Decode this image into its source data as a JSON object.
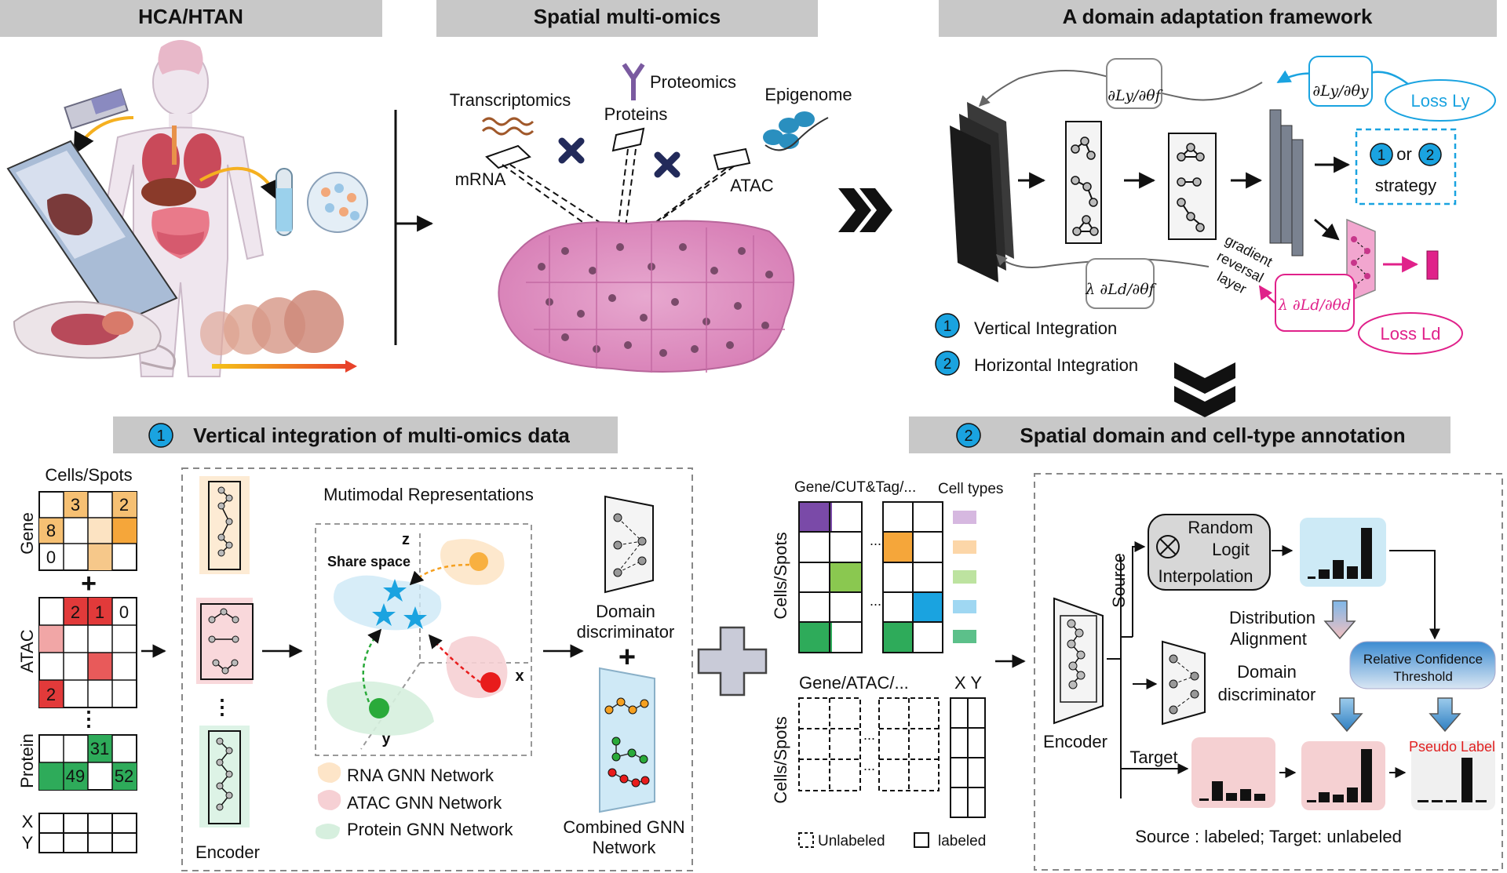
{
  "headers": {
    "hca": "HCA/HTAN",
    "spatial": "Spatial multi-omics",
    "domain": "A domain adaptation framework",
    "vertical": "Vertical integration of multi-omics data",
    "spatial_domain": "Spatial domain and cell-type annotation",
    "vertical_num": "1",
    "spatial_num": "2"
  },
  "omics": {
    "transcriptomics": "Transcriptomics",
    "mrna": "mRNA",
    "proteomics": "Proteomics",
    "proteins": "Proteins",
    "epigenome": "Epigenome",
    "atac": "ATAC"
  },
  "framework": {
    "grad_f_top": "∂Ly/∂θf",
    "grad_y": "∂Ly/∂θy",
    "loss_y": "Loss Ly",
    "grad_f_bottom": "λ ∂Ld/∂θf",
    "grad_d": "λ ∂Ld/∂θd",
    "loss_d": "Loss Ld",
    "strategy_or": "or",
    "strategy": "strategy",
    "grl": [
      "gradient",
      "reversal",
      "layer"
    ],
    "legend": [
      {
        "num": "1",
        "label": "Vertical Integration"
      },
      {
        "num": "2",
        "label": "Horizontal Integration"
      }
    ]
  },
  "vertical": {
    "cells_spots": "Cells/Spots",
    "gene": "Gene",
    "atac": "ATAC",
    "protein": "Protein",
    "x": "X",
    "y": "Y",
    "gene_cells": [
      "3",
      "2",
      "8",
      "0"
    ],
    "atac_cells": [
      "2",
      "1",
      "0",
      "2"
    ],
    "protein_cells": [
      "31",
      "49",
      "52"
    ],
    "plus": "+",
    "dots": "⋮",
    "mm_title": "Mutimodal Representations",
    "share_space": "Share space",
    "axis_z": "z",
    "axis_x": "x",
    "axis_y": "y",
    "encoder": "Encoder",
    "domain_disc": [
      "Domain",
      "discriminator"
    ],
    "combined": [
      "Combined GNN",
      "Network"
    ],
    "legend": [
      "RNA GNN Network",
      "ATAC GNN Network",
      "Protein GNN Network"
    ]
  },
  "annotation": {
    "gene_cut": "Gene/CUT&Tag/...",
    "cell_types": "Cell types",
    "cells_spots": "Cells/Spots",
    "gene_atac": "Gene/ATAC/...",
    "xy": "X  Y",
    "unlabeled": "Unlabeled",
    "labeled": "labeled",
    "dots": "...",
    "source": "Source",
    "target": "Target",
    "encoder": "Encoder",
    "rli": [
      "Random",
      "Logit",
      "Interpolation"
    ],
    "dist_align": [
      "Distribution",
      "Alignment"
    ],
    "domain_disc": [
      "Domain",
      "discriminator"
    ],
    "rct": [
      "Relative Confidence",
      "Threshold"
    ],
    "pseudo": "Pseudo Label",
    "caption": "Source : labeled; Target: unlabeled"
  },
  "colors": {
    "header_bg": "#c8c8c8",
    "blue": "#1aa3e0",
    "magenta": "#e0218a",
    "orange_cell": "#f5b04a",
    "red_cell": "#e23a3a",
    "green_cell": "#2eab5a"
  }
}
